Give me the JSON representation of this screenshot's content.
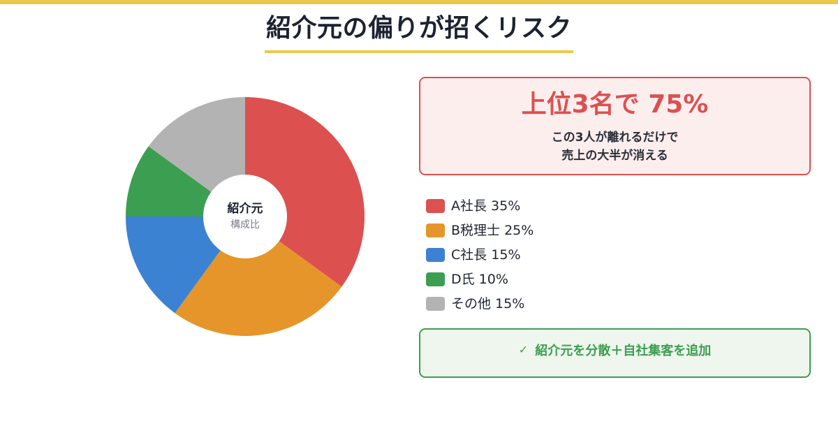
{
  "title": "紹介元の偏りが招くリスク",
  "colors": {
    "accent_yellow": "#ebc84a",
    "red": "#dc5050",
    "orange": "#e6952a",
    "blue": "#3c82d2",
    "green": "#3c9e50",
    "gray": "#b3b3b3"
  },
  "donut": {
    "center_title": "紹介元",
    "center_sub": "構成比"
  },
  "alert": {
    "headline": "上位3名で 75%",
    "line1": "この3人が離れるだけで",
    "line2": "売上の大半が消える"
  },
  "legend": [
    {
      "label": "A社長 35%",
      "color": "#dc5050"
    },
    {
      "label": "B税理士 25%",
      "color": "#e6952a"
    },
    {
      "label": "C社長 15%",
      "color": "#3c82d2"
    },
    {
      "label": "D氏 10%",
      "color": "#3c9e50"
    },
    {
      "label": "その他 15%",
      "color": "#b3b3b3"
    }
  ],
  "action": {
    "icon": "check-icon",
    "check_glyph": "✓",
    "label": "紹介元を分散＋自社集客を追加"
  },
  "chart_data": {
    "type": "pie",
    "title": "紹介元 構成比",
    "categories": [
      "A社長",
      "B税理士",
      "C社長",
      "D氏",
      "その他"
    ],
    "values": [
      35,
      25,
      15,
      10,
      15
    ],
    "unit": "%",
    "colors": [
      "#dc5050",
      "#e6952a",
      "#3c82d2",
      "#3c9e50",
      "#b3b3b3"
    ],
    "donut": true,
    "start_angle": "12 o'clock",
    "direction": "clockwise",
    "legend_position": "right",
    "annotation": "上位3名で 75%"
  }
}
